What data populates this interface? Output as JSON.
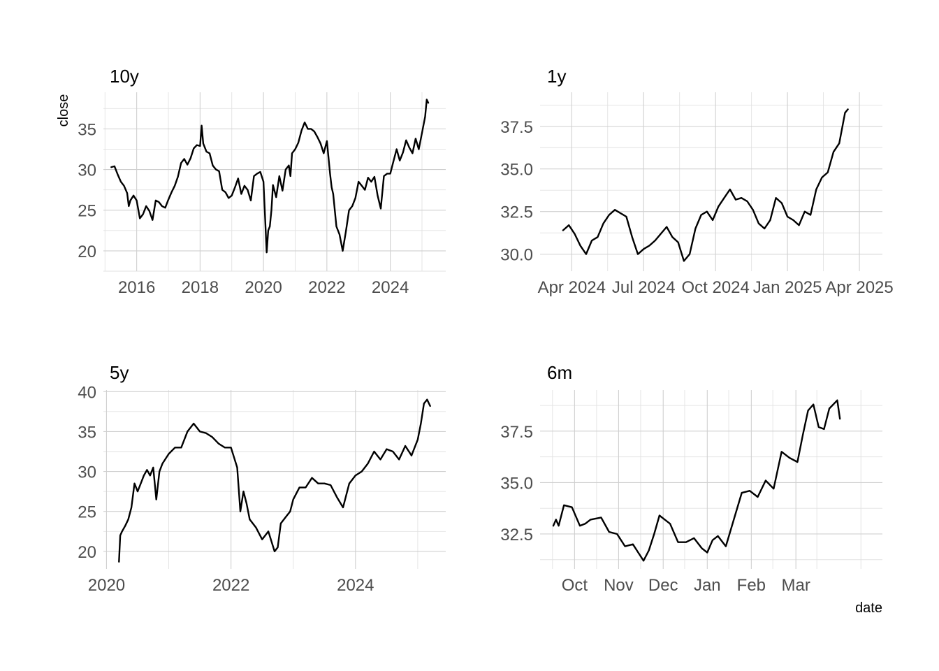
{
  "figure": {
    "x_axis_title": "date",
    "y_axis_title": "close"
  },
  "chart_data": [
    {
      "type": "line",
      "title": "10y",
      "xlabel": "",
      "ylabel": "close",
      "x_type": "year",
      "xlim": [
        2014.95,
        2025.75
      ],
      "ylim": [
        17.5,
        39.5
      ],
      "x_ticks": [
        {
          "value": 2016,
          "label": "2016"
        },
        {
          "value": 2018,
          "label": "2018"
        },
        {
          "value": 2020,
          "label": "2020"
        },
        {
          "value": 2022,
          "label": "2022"
        },
        {
          "value": 2024,
          "label": "2024"
        }
      ],
      "y_ticks": [
        {
          "value": 20,
          "label": "20"
        },
        {
          "value": 25,
          "label": "25"
        },
        {
          "value": 30,
          "label": "30"
        },
        {
          "value": 35,
          "label": "35"
        }
      ],
      "grid": true,
      "series": [
        {
          "x": [
            2015.2,
            2015.3,
            2015.4,
            2015.5,
            2015.6,
            2015.7,
            2015.75,
            2015.8,
            2015.9,
            2016.0,
            2016.1,
            2016.2,
            2016.3,
            2016.4,
            2016.5,
            2016.6,
            2016.7,
            2016.8,
            2016.9,
            2017.0,
            2017.1,
            2017.2,
            2017.3,
            2017.4,
            2017.5,
            2017.6,
            2017.7,
            2017.8,
            2017.9,
            2018.0,
            2018.05,
            2018.1,
            2018.2,
            2018.3,
            2018.4,
            2018.5,
            2018.6,
            2018.7,
            2018.8,
            2018.9,
            2019.0,
            2019.1,
            2019.2,
            2019.3,
            2019.4,
            2019.5,
            2019.6,
            2019.7,
            2019.8,
            2019.9,
            2020.0,
            2020.1,
            2020.15,
            2020.2,
            2020.25,
            2020.3,
            2020.4,
            2020.5,
            2020.6,
            2020.7,
            2020.8,
            2020.85,
            2020.9,
            2021.0,
            2021.1,
            2021.2,
            2021.3,
            2021.4,
            2021.5,
            2021.6,
            2021.7,
            2021.8,
            2021.9,
            2022.0,
            2022.1,
            2022.15,
            2022.2,
            2022.3,
            2022.4,
            2022.5,
            2022.6,
            2022.7,
            2022.8,
            2022.9,
            2023.0,
            2023.1,
            2023.2,
            2023.3,
            2023.4,
            2023.5,
            2023.6,
            2023.7,
            2023.8,
            2023.9,
            2024.0,
            2024.1,
            2024.2,
            2024.3,
            2024.4,
            2024.5,
            2024.6,
            2024.7,
            2024.8,
            2024.9,
            2025.0,
            2025.1,
            2025.15,
            2025.2
          ],
          "values": [
            30.3,
            30.4,
            29.4,
            28.5,
            28.0,
            27.1,
            25.5,
            26.2,
            26.8,
            26.2,
            24.0,
            24.5,
            25.5,
            24.9,
            23.8,
            26.2,
            26.0,
            25.5,
            25.3,
            26.3,
            27.2,
            28.0,
            29.1,
            30.8,
            31.3,
            30.6,
            31.4,
            32.6,
            33.0,
            32.9,
            35.4,
            33.2,
            32.2,
            32.0,
            30.5,
            30.0,
            29.8,
            27.5,
            27.2,
            26.5,
            26.8,
            27.8,
            28.9,
            27.0,
            28.0,
            27.5,
            26.2,
            29.2,
            29.5,
            29.7,
            28.5,
            19.8,
            22.5,
            23.0,
            25.0,
            28.1,
            26.6,
            29.2,
            27.4,
            30.0,
            30.5,
            29.2,
            32.0,
            32.5,
            33.3,
            34.8,
            35.8,
            35.0,
            35.0,
            34.7,
            34.0,
            33.2,
            32.0,
            33.5,
            29.5,
            27.8,
            27.0,
            23.0,
            22.0,
            20.0,
            22.4,
            25.0,
            25.5,
            26.5,
            28.5,
            28.0,
            27.5,
            29.0,
            28.5,
            29.1,
            26.8,
            25.2,
            29.2,
            29.5,
            29.5,
            31.0,
            32.5,
            31.1,
            32.1,
            33.6,
            32.7,
            32.0,
            33.8,
            32.5,
            34.5,
            36.5,
            38.6,
            38.2
          ]
        }
      ]
    },
    {
      "type": "line",
      "title": "1y",
      "xlabel": "",
      "ylabel": "",
      "x_type": "month",
      "xlim": [
        2024.14,
        2025.33
      ],
      "ylim": [
        29.0,
        39.5
      ],
      "x_ticks": [
        {
          "value": 2024.25,
          "label": "Apr 2024"
        },
        {
          "value": 2024.5,
          "label": "Jul 2024"
        },
        {
          "value": 2024.75,
          "label": "Oct 2024"
        },
        {
          "value": 2025.0,
          "label": "Jan 2025"
        },
        {
          "value": 2025.25,
          "label": "Apr 2025"
        }
      ],
      "y_ticks": [
        {
          "value": 30.0,
          "label": "30.0"
        },
        {
          "value": 32.5,
          "label": "32.5"
        },
        {
          "value": 35.0,
          "label": "35.0"
        },
        {
          "value": 37.5,
          "label": "37.5"
        }
      ],
      "grid": true,
      "series": [
        {
          "x": [
            2024.22,
            2024.24,
            2024.26,
            2024.28,
            2024.3,
            2024.32,
            2024.34,
            2024.36,
            2024.38,
            2024.4,
            2024.42,
            2024.44,
            2024.46,
            2024.48,
            2024.5,
            2024.52,
            2024.54,
            2024.56,
            2024.58,
            2024.6,
            2024.62,
            2024.64,
            2024.66,
            2024.68,
            2024.7,
            2024.72,
            2024.74,
            2024.76,
            2024.78,
            2024.8,
            2024.82,
            2024.84,
            2024.86,
            2024.88,
            2024.9,
            2024.92,
            2024.94,
            2024.96,
            2024.98,
            2025.0,
            2025.02,
            2025.04,
            2025.06,
            2025.08,
            2025.1,
            2025.12,
            2025.14,
            2025.16,
            2025.18,
            2025.2,
            2025.21
          ],
          "values": [
            31.4,
            31.7,
            31.2,
            30.5,
            30.0,
            30.8,
            31.0,
            31.8,
            32.3,
            32.6,
            32.4,
            32.2,
            31.0,
            30.0,
            30.3,
            30.5,
            30.8,
            31.2,
            31.6,
            31.0,
            30.7,
            29.6,
            30.0,
            31.5,
            32.3,
            32.5,
            32.0,
            32.8,
            33.3,
            33.8,
            33.2,
            33.3,
            33.1,
            32.6,
            31.8,
            31.5,
            32.0,
            33.3,
            33.0,
            32.2,
            32.0,
            31.7,
            32.5,
            32.3,
            33.8,
            34.5,
            34.8,
            36.0,
            36.5,
            38.3,
            38.5
          ]
        }
      ]
    },
    {
      "type": "line",
      "title": "5y",
      "xlabel": "",
      "ylabel": "",
      "x_type": "year",
      "xlim": [
        2019.95,
        2025.45
      ],
      "ylim": [
        17.8,
        40.2
      ],
      "x_ticks": [
        {
          "value": 2020,
          "label": "2020"
        },
        {
          "value": 2022,
          "label": "2022"
        },
        {
          "value": 2024,
          "label": "2024"
        }
      ],
      "y_ticks": [
        {
          "value": 20,
          "label": "20"
        },
        {
          "value": 25,
          "label": "25"
        },
        {
          "value": 30,
          "label": "30"
        },
        {
          "value": 35,
          "label": "35"
        },
        {
          "value": 40,
          "label": "40"
        }
      ],
      "grid": true,
      "series": [
        {
          "x": [
            2020.2,
            2020.22,
            2020.25,
            2020.3,
            2020.35,
            2020.4,
            2020.45,
            2020.5,
            2020.55,
            2020.6,
            2020.65,
            2020.7,
            2020.75,
            2020.8,
            2020.85,
            2020.9,
            2021.0,
            2021.1,
            2021.2,
            2021.3,
            2021.4,
            2021.5,
            2021.6,
            2021.7,
            2021.8,
            2021.9,
            2022.0,
            2022.1,
            2022.15,
            2022.2,
            2022.25,
            2022.3,
            2022.4,
            2022.5,
            2022.6,
            2022.7,
            2022.75,
            2022.8,
            2022.9,
            2022.95,
            2023.0,
            2023.1,
            2023.2,
            2023.3,
            2023.4,
            2023.5,
            2023.6,
            2023.7,
            2023.8,
            2023.9,
            2024.0,
            2024.1,
            2024.2,
            2024.3,
            2024.4,
            2024.5,
            2024.6,
            2024.7,
            2024.8,
            2024.9,
            2025.0,
            2025.05,
            2025.1,
            2025.15,
            2025.2
          ],
          "values": [
            18.7,
            22.0,
            22.5,
            23.2,
            24.0,
            25.5,
            28.5,
            27.5,
            28.5,
            29.5,
            30.2,
            29.5,
            30.5,
            26.5,
            30.0,
            31.0,
            32.2,
            33.0,
            33.0,
            35.0,
            36.0,
            35.0,
            34.8,
            34.3,
            33.5,
            33.0,
            33.0,
            30.5,
            25.0,
            27.5,
            26.0,
            24.0,
            23.0,
            21.5,
            22.5,
            20.0,
            20.5,
            23.5,
            24.5,
            25.0,
            26.5,
            28.0,
            28.0,
            29.2,
            28.5,
            28.5,
            28.3,
            26.8,
            25.5,
            28.5,
            29.5,
            30.0,
            31.0,
            32.5,
            31.5,
            32.8,
            32.5,
            31.5,
            33.2,
            32.0,
            34.0,
            36.0,
            38.5,
            39.0,
            38.2
          ]
        }
      ]
    },
    {
      "type": "line",
      "title": "6m",
      "xlabel": "date",
      "ylabel": "",
      "x_type": "month",
      "xlim": [
        2024.685,
        2025.33
      ],
      "ylim": [
        30.8,
        39.5
      ],
      "x_ticks": [
        {
          "value": 2024.75,
          "label": "Oct"
        },
        {
          "value": 2024.833,
          "label": "Nov"
        },
        {
          "value": 2024.917,
          "label": "Dec"
        },
        {
          "value": 2025.0,
          "label": "Jan"
        },
        {
          "value": 2025.083,
          "label": "Feb"
        },
        {
          "value": 2025.167,
          "label": "Mar"
        }
      ],
      "y_ticks": [
        {
          "value": 32.5,
          "label": "32.5"
        },
        {
          "value": 35.0,
          "label": "35.0"
        },
        {
          "value": 37.5,
          "label": "37.5"
        }
      ],
      "grid": true,
      "series": [
        {
          "x": [
            2024.71,
            2024.715,
            2024.72,
            2024.73,
            2024.745,
            2024.76,
            2024.77,
            2024.78,
            2024.8,
            2024.815,
            2024.83,
            2024.845,
            2024.86,
            2024.87,
            2024.88,
            2024.89,
            2024.9,
            2024.91,
            2024.92,
            2024.93,
            2024.945,
            2024.96,
            2024.975,
            2024.99,
            2025.0,
            2025.01,
            2025.02,
            2025.035,
            2025.05,
            2025.065,
            2025.08,
            2025.095,
            2025.11,
            2025.125,
            2025.14,
            2025.155,
            2025.17,
            2025.18,
            2025.19,
            2025.2,
            2025.21,
            2025.22,
            2025.23,
            2025.245,
            2025.25
          ],
          "values": [
            32.9,
            33.2,
            32.9,
            33.9,
            33.8,
            32.9,
            33.0,
            33.2,
            33.3,
            32.6,
            32.5,
            31.9,
            32.0,
            31.6,
            31.2,
            31.7,
            32.5,
            33.4,
            33.2,
            33.0,
            32.1,
            32.1,
            32.3,
            31.8,
            31.6,
            32.2,
            32.4,
            31.9,
            33.2,
            34.5,
            34.6,
            34.3,
            35.1,
            34.7,
            36.5,
            36.2,
            36.0,
            37.3,
            38.5,
            38.8,
            37.7,
            37.6,
            38.6,
            39.0,
            38.1
          ]
        }
      ]
    }
  ]
}
